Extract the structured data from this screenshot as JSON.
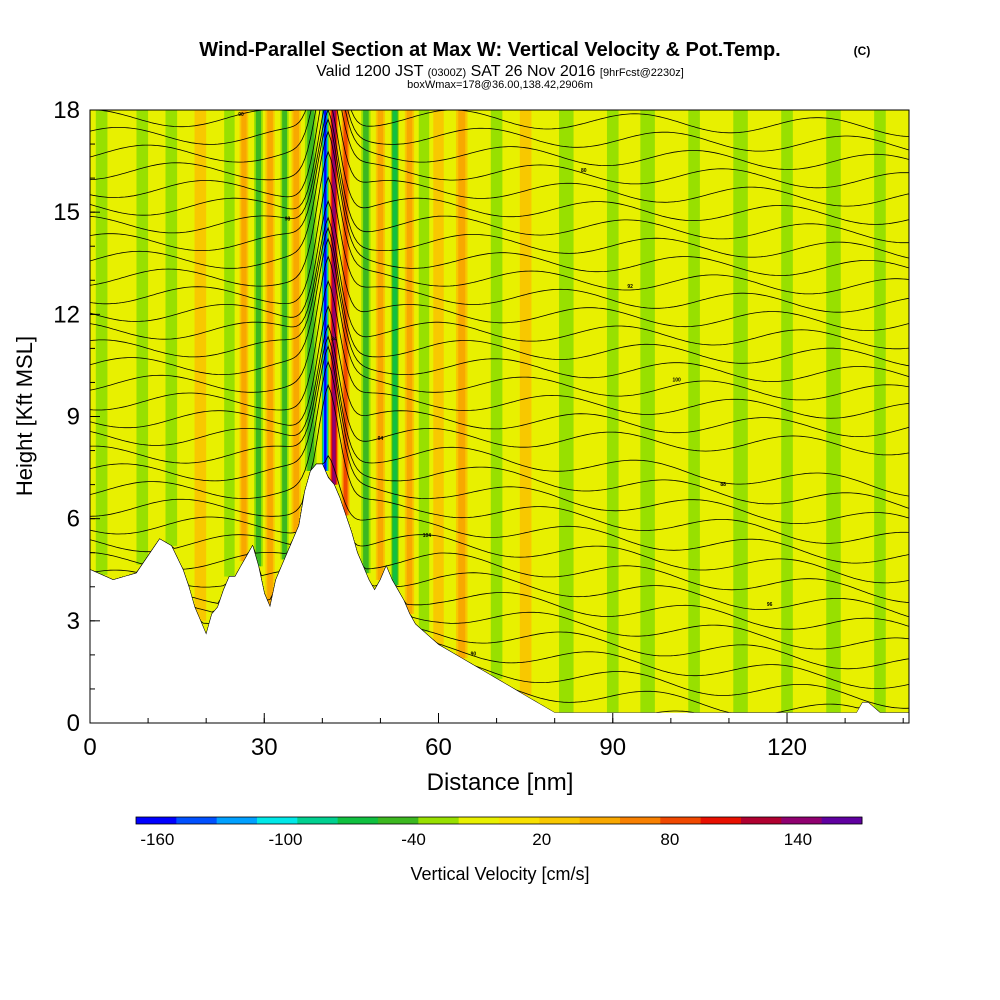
{
  "chart_data": {
    "type": "heatmap",
    "title": "Wind-Parallel Section at Max W: Vertical Velocity & Pot.Temp.",
    "title_mark": "(C)",
    "subtitle": {
      "part1": "Valid 1200 JST",
      "part2": "(0300Z)",
      "part3": "SAT 26 Nov 2016",
      "part4": "[9hrFcst@2230z]"
    },
    "subtitle2": "boxWmax=178@36.00,138.42,2906m",
    "xlabel": "Distance [nm]",
    "ylabel": "Height [Kft MSL]",
    "xlim": [
      0,
      141
    ],
    "ylim": [
      0,
      18
    ],
    "xticks": [
      0,
      30,
      60,
      90,
      120
    ],
    "yticks": [
      0,
      3,
      6,
      9,
      12,
      15,
      18
    ],
    "colorbar": {
      "label": "Vertical Velocity [cm/s]",
      "range": [
        -170,
        170
      ],
      "step": 20,
      "tick_values": [
        -160,
        -100,
        -40,
        20,
        80,
        140
      ],
      "tick_labels": [
        "-160",
        "-100",
        "-40",
        "20",
        "80",
        "140"
      ],
      "colors": [
        "#0000ff",
        "#0050ff",
        "#00a0ff",
        "#00e8e8",
        "#00d090",
        "#10c040",
        "#3cb820",
        "#98e000",
        "#e8f000",
        "#f8e000",
        "#f8c800",
        "#f8a800",
        "#f88000",
        "#f04800",
        "#e81000",
        "#b00030",
        "#900070",
        "#6000a0"
      ]
    },
    "terrain_profile": {
      "x": [
        0,
        4,
        8,
        12,
        14,
        16,
        17,
        18,
        19,
        20,
        21,
        22,
        23,
        24,
        25,
        26,
        27,
        28,
        29,
        30,
        31,
        32,
        33,
        34,
        36,
        37,
        38,
        39,
        40,
        41,
        42,
        43,
        44,
        45,
        46,
        47,
        48,
        49,
        50,
        51,
        52,
        53,
        54,
        55,
        56,
        58,
        60,
        62,
        64,
        66,
        68,
        70,
        72,
        74,
        76,
        78,
        79,
        80,
        84,
        90,
        95,
        100,
        105,
        110,
        115,
        120,
        126,
        128,
        130,
        132,
        133,
        134,
        136,
        138,
        141
      ],
      "y": [
        4.5,
        4.2,
        4.4,
        5.4,
        5.2,
        4.5,
        4.0,
        3.4,
        3.0,
        2.6,
        3.2,
        3.4,
        3.9,
        4.3,
        4.3,
        4.6,
        4.9,
        5.2,
        4.6,
        3.8,
        3.4,
        4.2,
        4.6,
        5.0,
        5.8,
        6.8,
        7.4,
        7.6,
        7.6,
        7.2,
        7.0,
        6.6,
        6.1,
        5.6,
        5.0,
        4.6,
        4.2,
        3.9,
        4.2,
        4.6,
        4.2,
        3.9,
        3.6,
        3.2,
        2.9,
        2.6,
        2.3,
        2.1,
        1.9,
        1.7,
        1.5,
        1.3,
        1.1,
        0.9,
        0.7,
        0.5,
        0.4,
        0.3,
        0.3,
        0.3,
        0.3,
        0.3,
        0.3,
        0.3,
        0.3,
        0.3,
        0.3,
        0.3,
        0.3,
        0.3,
        0.6,
        0.6,
        0.3,
        0.3,
        0.3
      ]
    },
    "vertical_velocity_features": [
      {
        "x": 40.5,
        "w": -160,
        "width_nm": 1.2
      },
      {
        "x": 42.0,
        "w": 140,
        "width_nm": 1.6
      },
      {
        "x": 44.0,
        "w": 80,
        "width_nm": 1.5
      },
      {
        "x": 38.0,
        "w": -40,
        "width_nm": 2.0
      },
      {
        "x": 35.5,
        "w": 40,
        "width_nm": 1.6
      },
      {
        "x": 33.5,
        "w": -40,
        "width_nm": 1.4
      },
      {
        "x": 31.0,
        "w": 40,
        "width_nm": 1.6
      },
      {
        "x": 29.0,
        "w": -30,
        "width_nm": 1.5
      },
      {
        "x": 26.5,
        "w": 30,
        "width_nm": 1.5
      },
      {
        "x": 24.0,
        "w": -20,
        "width_nm": 1.8
      },
      {
        "x": 47.5,
        "w": -40,
        "width_nm": 1.6
      },
      {
        "x": 50.0,
        "w": 40,
        "width_nm": 1.6
      },
      {
        "x": 52.5,
        "w": -60,
        "width_nm": 1.4
      },
      {
        "x": 55.0,
        "w": 40,
        "width_nm": 1.6
      },
      {
        "x": 57.5,
        "w": -20,
        "width_nm": 1.8
      },
      {
        "x": 60.0,
        "w": 25,
        "width_nm": 1.8
      },
      {
        "x": 64.0,
        "w": 30,
        "width_nm": 2.0
      },
      {
        "x": 70.0,
        "w": -20,
        "width_nm": 2.0
      },
      {
        "x": 75.0,
        "w": 20,
        "width_nm": 2.0
      },
      {
        "x": 82.0,
        "w": -20,
        "width_nm": 2.5
      },
      {
        "x": 90.0,
        "w": -20,
        "width_nm": 2.0
      },
      {
        "x": 96.0,
        "w": -20,
        "width_nm": 2.5
      },
      {
        "x": 104.0,
        "w": -20,
        "width_nm": 2.0
      },
      {
        "x": 112.0,
        "w": -20,
        "width_nm": 2.5
      },
      {
        "x": 120.0,
        "w": -20,
        "width_nm": 2.0
      },
      {
        "x": 128.0,
        "w": -20,
        "width_nm": 2.5
      },
      {
        "x": 136.0,
        "w": -20,
        "width_nm": 2.0
      },
      {
        "x": 2.0,
        "w": -20,
        "width_nm": 2.0
      },
      {
        "x": 9.0,
        "w": -20,
        "width_nm": 2.0
      },
      {
        "x": 14.0,
        "w": -20,
        "width_nm": 2.0
      },
      {
        "x": 19.0,
        "w": 20,
        "width_nm": 2.0
      }
    ],
    "potential_temperature_contours": {
      "note": "theta isolines, labels printed along lines",
      "count": 34
    },
    "contour_labels": [
      "80",
      "84",
      "88",
      "90",
      "92",
      "94",
      "96",
      "98",
      "100",
      "104"
    ]
  }
}
